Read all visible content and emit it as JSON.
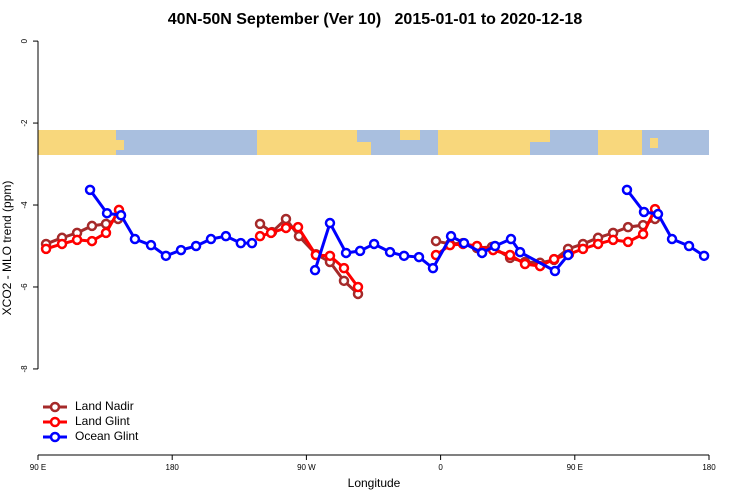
{
  "chart_data": {
    "type": "line",
    "title": "40N-50N September (Ver 10)   2015-01-01 to 2020-12-18",
    "xlabel": "Longitude",
    "ylabel": "XCO2 - MLO trend (ppm)",
    "xlim": [
      90,
      540
    ],
    "ylim": [
      -10.1,
      0.1
    ],
    "xticks": [
      {
        "value": 90,
        "label": "90 E"
      },
      {
        "value": 180,
        "label": "180"
      },
      {
        "value": 270,
        "label": "90 W"
      },
      {
        "value": 360,
        "label": "0"
      },
      {
        "value": 450,
        "label": "90 E"
      },
      {
        "value": 540,
        "label": "180"
      }
    ],
    "yticks": [
      0,
      -2,
      -4,
      -6,
      -8
    ],
    "legend": "bottom-left",
    "series": [
      {
        "name": "Land Nadir",
        "color": "#a52a2a",
        "x": [
          95.4,
          106.1,
          116.2,
          126.2,
          135.6,
          143.7,
          null,
          238.9,
          246.9,
          256.3,
          265,
          276.4,
          285.8,
          295.2,
          304.6,
          null,
          356.9,
          366.3,
          375,
          384.4,
          394.5,
          406.6,
          416.6,
          426.7,
          436.1,
          445.5,
          455.5,
          465.6,
          475.7,
          485.7,
          495.8,
          503.8
        ],
        "values": [
          -4.95,
          -4.8,
          -4.68,
          -4.51,
          -4.46,
          -4.34,
          null,
          -4.46,
          -4.66,
          -4.34,
          -4.76,
          -5.2,
          -5.39,
          -5.85,
          -6.17,
          null,
          -4.88,
          -4.95,
          -4.93,
          -5.05,
          -5.02,
          -5.29,
          -5.39,
          -5.41,
          -5.34,
          -5.07,
          -4.95,
          -4.8,
          -4.68,
          -4.54,
          -4.49,
          -4.34
        ]
      },
      {
        "name": "Land Glint",
        "color": "#ff0000",
        "x": [
          95.4,
          106.1,
          116.2,
          126.2,
          135.6,
          144.3,
          null,
          238.9,
          246.3,
          256.3,
          264.4,
          276.4,
          285.8,
          295.2,
          304.6,
          null,
          356.9,
          366.3,
          375,
          384.4,
          395.2,
          406.6,
          416.6,
          426.7,
          436.1,
          446.1,
          455.5,
          465.6,
          475.7,
          485.7,
          495.8,
          503.8
        ],
        "values": [
          -5.07,
          -4.95,
          -4.85,
          -4.88,
          -4.68,
          -4.12,
          null,
          -4.76,
          -4.68,
          -4.56,
          -4.54,
          -5.22,
          -5.24,
          -5.54,
          -6.0,
          null,
          -5.22,
          -4.98,
          -4.95,
          -5.0,
          -5.1,
          -5.22,
          -5.44,
          -5.49,
          -5.32,
          -5.2,
          -5.07,
          -4.95,
          -4.85,
          -4.9,
          -4.71,
          -4.1
        ]
      },
      {
        "name": "Ocean Glint",
        "color": "#0000ff",
        "x": [
          124.9,
          136.3,
          145.7,
          155,
          165.8,
          175.8,
          185.9,
          196,
          206,
          216,
          226,
          233.5,
          null,
          275.8,
          285.8,
          296.6,
          306,
          315.4,
          326.1,
          335.5,
          345.5,
          354.9,
          367,
          375.7,
          387.8,
          396.5,
          407.2,
          413.3,
          436.7,
          445.5,
          null,
          485,
          496.4,
          505.8,
          515.2,
          526.6,
          536.7
        ],
        "values": [
          -3.63,
          -4.2,
          -4.25,
          -4.83,
          -4.98,
          -5.24,
          -5.1,
          -5.0,
          -4.83,
          -4.76,
          -4.93,
          -4.93,
          null,
          -5.59,
          -4.44,
          -5.17,
          -5.12,
          -4.95,
          -5.15,
          -5.24,
          -5.27,
          -5.54,
          -4.76,
          -4.93,
          -5.17,
          -5.0,
          -4.83,
          -5.15,
          -5.61,
          -5.22,
          null,
          -3.63,
          -4.17,
          -4.22,
          -4.83,
          -5.0,
          -5.24
        ]
      }
    ]
  }
}
